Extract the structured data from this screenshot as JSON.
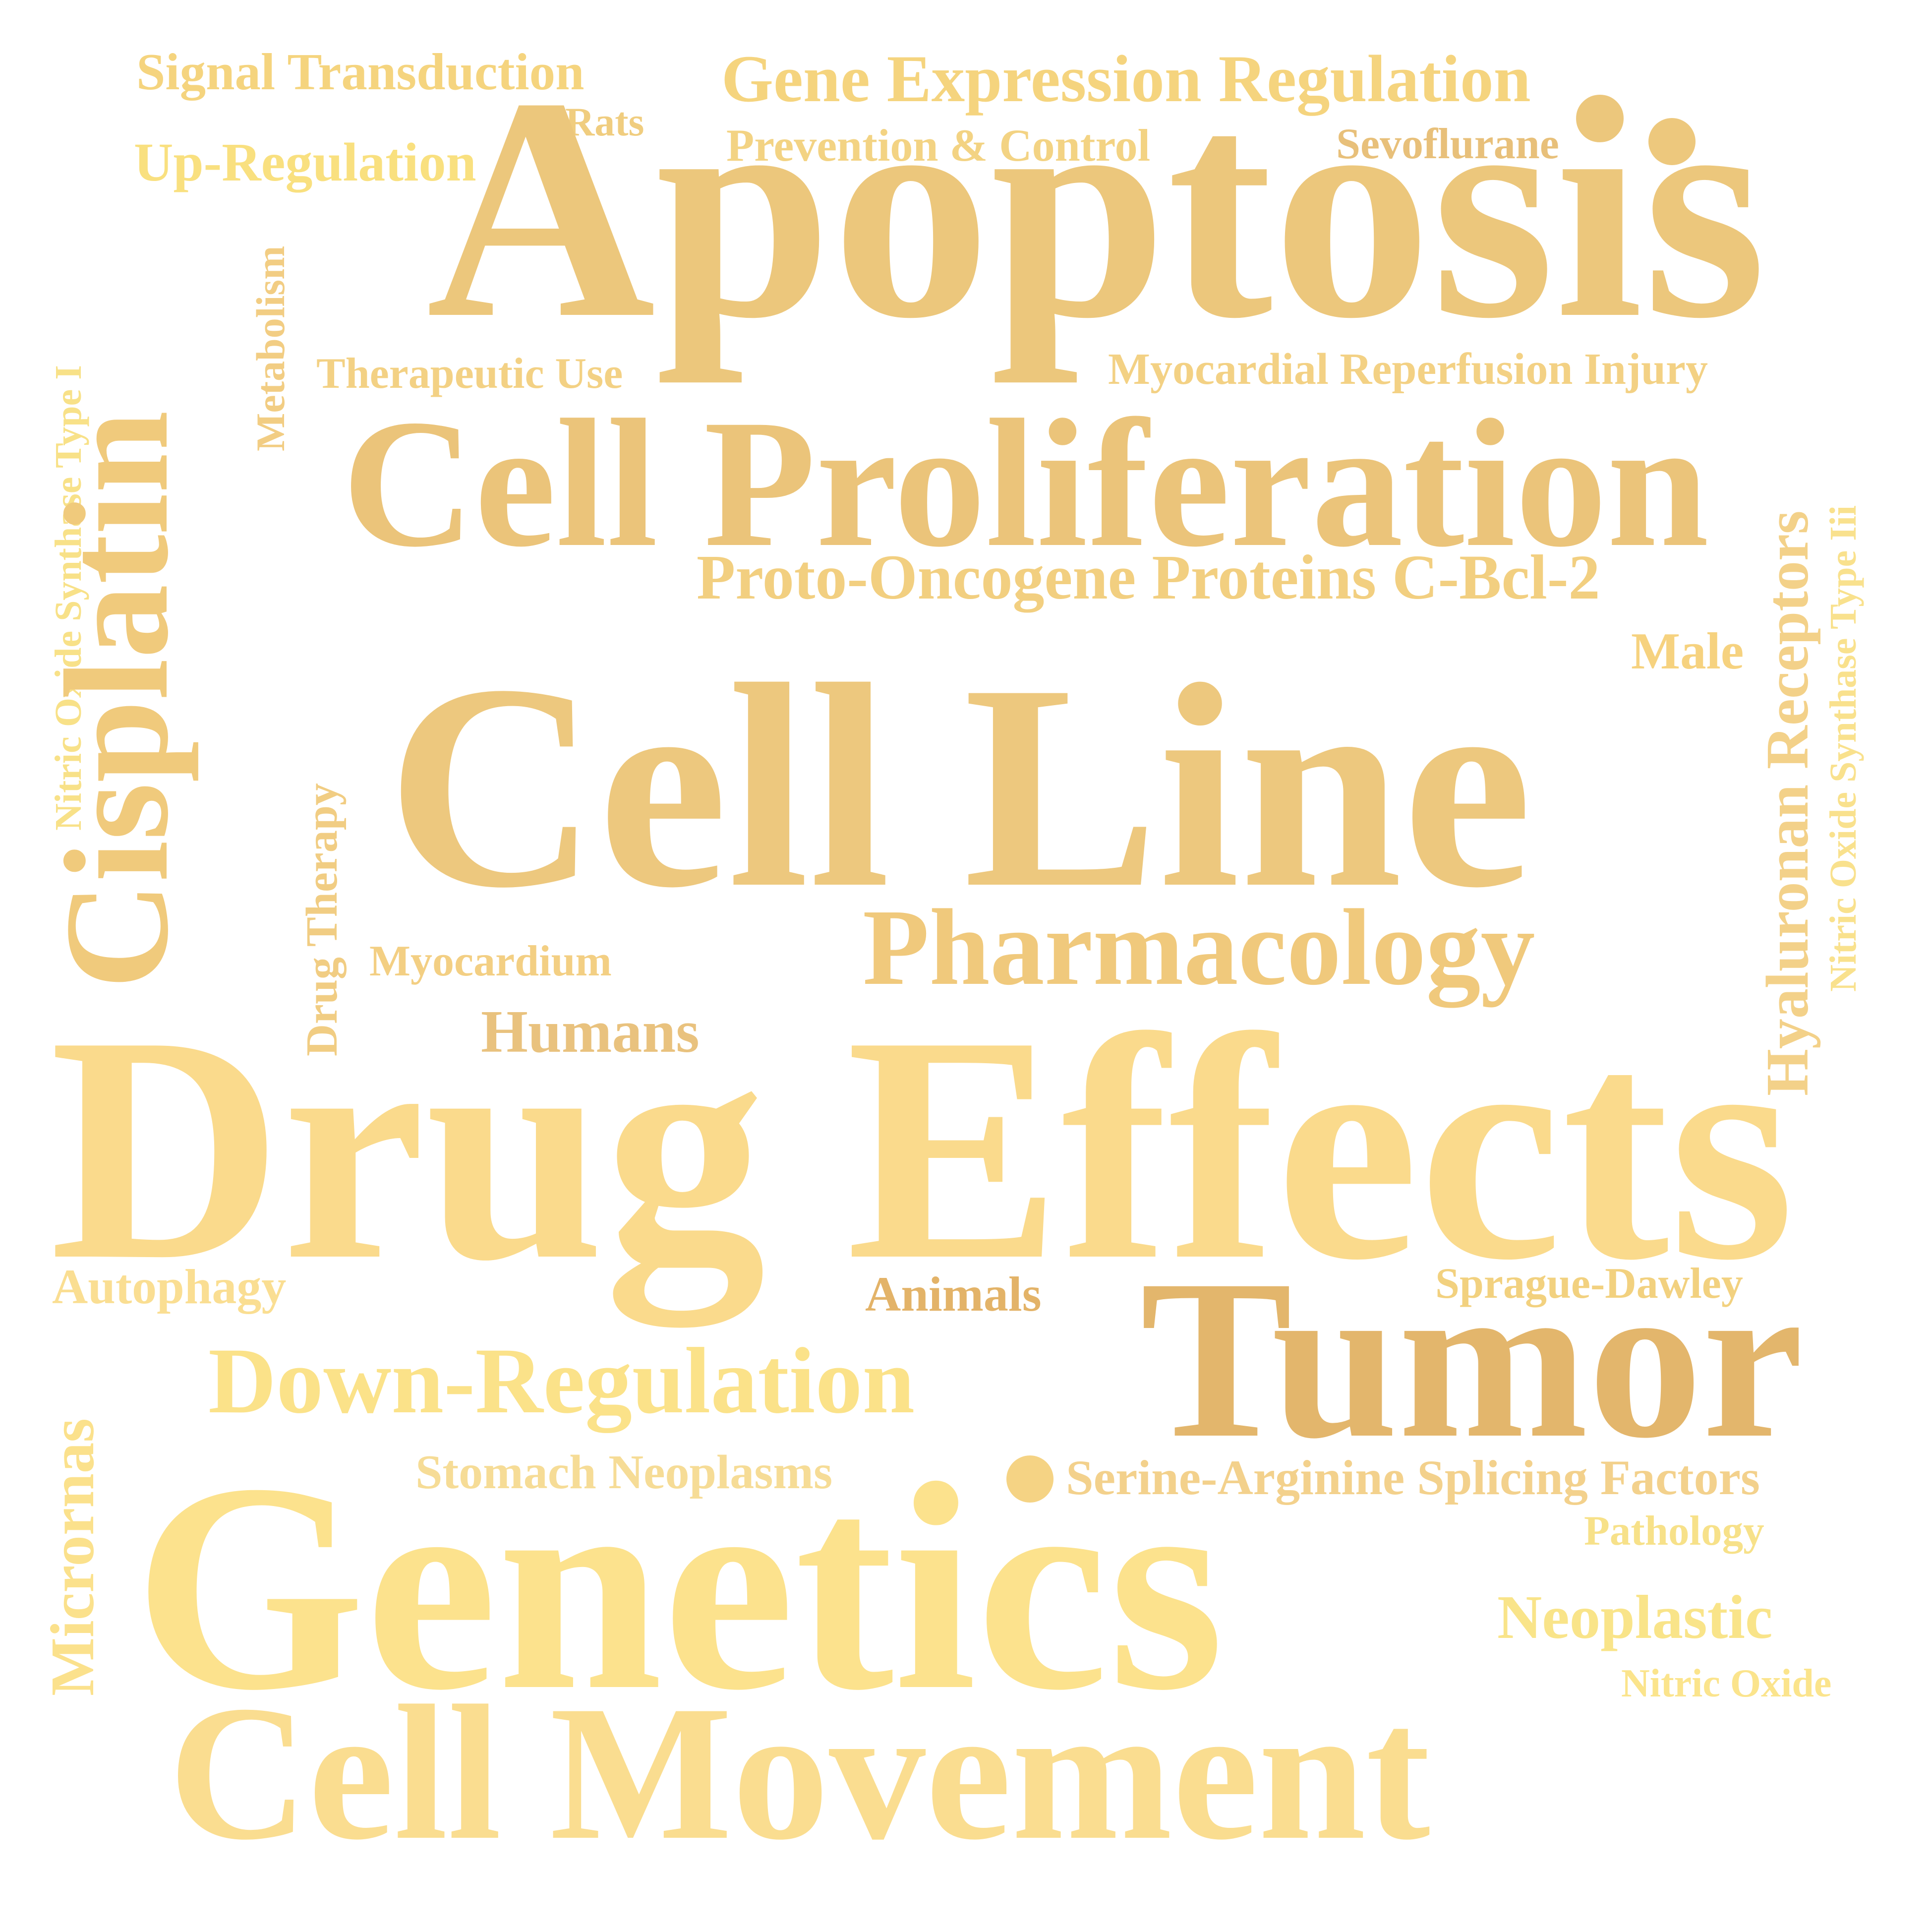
{
  "words": {
    "signal_transduction": "Signal Transduction",
    "gene_expression_regulation": "Gene Expression Regulation",
    "rats": "Rats",
    "prevention_control": "Prevention & Control",
    "sevoflurane": "Sevoflurane",
    "up_regulation": "Up-Regulation",
    "apoptosis": "Apoptosis",
    "nitric_oxide_synthase_type_i": "Nitric Oxide Synthase Type I",
    "metabolism": "Metabolism",
    "cisplatin": "Cisplatin",
    "therapeutic_use": "Therapeutic Use",
    "myocardial_reperfusion_injury": "Myocardial Reperfusion Injury",
    "cell_proliferation": "Cell Proliferation",
    "receptors": "Receptors",
    "nitric_oxide_synthase_type_iii": "Nitric Oxide Synthase Type Iii",
    "proto_oncogene_proteins": "Proto-Oncogene Proteins C-Bcl-2",
    "male": "Male",
    "hyaluronan": "Hyaluronan",
    "cell_line": "Cell Line",
    "drug_therapy": "Drug Therapy",
    "pharmacology": "Pharmacology",
    "myocardium": "Myocardium",
    "humans": "Humans",
    "drug_effects": "Drug Effects",
    "autophagy": "Autophagy",
    "animals": "Animals",
    "sprague_dawley": "Sprague-Dawley",
    "tumor": "Tumor",
    "down_regulation": "Down-Regulation",
    "micrornas": "Micrornas",
    "stomach_neoplasms": "Stomach Neoplasms",
    "serine_arginine_splicing_factors": "Serine-Arginine Splicing Factors",
    "pathology": "Pathology",
    "genetics": "Genetics",
    "neoplastic": "Neoplastic",
    "nitric_oxide": "Nitric Oxide",
    "cell_movement": "Cell Movement"
  },
  "colors": {
    "background": "#ffffff",
    "palette": [
      "#fce28d",
      "#f5d47e",
      "#edc87e",
      "#e3b66c",
      "#e3b368"
    ]
  }
}
